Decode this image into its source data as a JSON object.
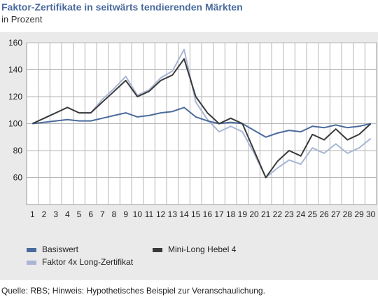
{
  "header": {
    "title": "Faktor-Zertifikate in seitwärts tendierenden Märkten",
    "subtitle": "in Prozent"
  },
  "footer": {
    "source_label": "Quelle:",
    "source_value": "RBS;",
    "note_label": "Hinweis:",
    "note_value": "Hypothetisches Beispiel zur Veranschaulichung."
  },
  "colors": {
    "basiswert": "#4a6b9d",
    "mini_long": "#3a3a3a",
    "faktor": "#a9b6d6",
    "title": "#4a6b9d"
  },
  "chart_data": {
    "type": "line",
    "title": "Faktor-Zertifikate in seitwärts tendierenden Märkten",
    "subtitle": "in Prozent",
    "xlabel": "",
    "ylabel": "",
    "x": [
      1,
      2,
      3,
      4,
      5,
      6,
      7,
      8,
      9,
      10,
      11,
      12,
      13,
      14,
      15,
      16,
      17,
      18,
      19,
      20,
      21,
      22,
      23,
      24,
      25,
      26,
      27,
      28,
      29,
      30
    ],
    "ylim": [
      40,
      160
    ],
    "yticks": [
      60,
      80,
      100,
      120,
      140,
      160
    ],
    "grid": true,
    "legend_position": "bottom",
    "series": [
      {
        "name": "Basiswert",
        "color": "#4a6b9d",
        "values": [
          100,
          101,
          102,
          103,
          102,
          102,
          104,
          106,
          108,
          105,
          106,
          108,
          109,
          112,
          105,
          102,
          100,
          101,
          100,
          95,
          90,
          93,
          95,
          94,
          98,
          97,
          99,
          97,
          98,
          100
        ]
      },
      {
        "name": "Mini-Long Hebel 4",
        "color": "#3a3a3a",
        "values": [
          100,
          104,
          108,
          112,
          108,
          108,
          116,
          124,
          132,
          120,
          124,
          132,
          136,
          148,
          120,
          108,
          100,
          104,
          100,
          80,
          60,
          72,
          80,
          76,
          92,
          88,
          96,
          88,
          92,
          100
        ]
      },
      {
        "name": "Faktor 4x Long-Zertifikat",
        "color": "#a9b6d6",
        "values": [
          100,
          104,
          108,
          112,
          108,
          108,
          118,
          126,
          135,
          121,
          125,
          134,
          139,
          155,
          116,
          103,
          94,
          98,
          94,
          78,
          60,
          67,
          73,
          70,
          82,
          78,
          85,
          78,
          82,
          89
        ]
      }
    ]
  }
}
